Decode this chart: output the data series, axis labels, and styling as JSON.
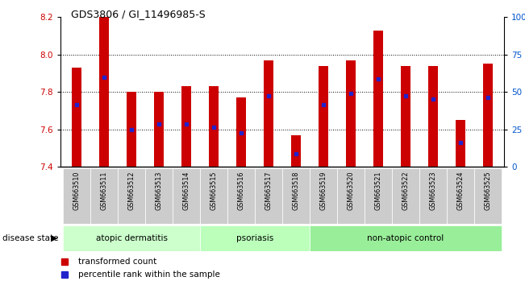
{
  "title": "GDS3806 / GI_11496985-S",
  "samples": [
    "GSM663510",
    "GSM663511",
    "GSM663512",
    "GSM663513",
    "GSM663514",
    "GSM663515",
    "GSM663516",
    "GSM663517",
    "GSM663518",
    "GSM663519",
    "GSM663520",
    "GSM663521",
    "GSM663522",
    "GSM663523",
    "GSM663524",
    "GSM663525"
  ],
  "bar_values": [
    7.93,
    8.2,
    7.8,
    7.8,
    7.83,
    7.83,
    7.77,
    7.97,
    7.57,
    7.94,
    7.97,
    8.13,
    7.94,
    7.94,
    7.65,
    7.95
  ],
  "percentile_values": [
    7.73,
    7.88,
    7.6,
    7.63,
    7.63,
    7.61,
    7.58,
    7.78,
    7.47,
    7.73,
    7.79,
    7.87,
    7.78,
    7.76,
    7.53,
    7.77
  ],
  "y_min": 7.4,
  "y_max": 8.2,
  "bar_color": "#cc0000",
  "dot_color": "#2222cc",
  "axis_label_color_left": "#cc0000",
  "axis_label_color_right": "#0055cc",
  "disease_groups": [
    {
      "label": "atopic dermatitis",
      "start": 0,
      "end": 4,
      "color": "#ccffcc"
    },
    {
      "label": "psoriasis",
      "start": 5,
      "end": 8,
      "color": "#bbffbb"
    },
    {
      "label": "non-atopic control",
      "start": 9,
      "end": 15,
      "color": "#aaeebb"
    }
  ],
  "y_ticks": [
    7.4,
    7.6,
    7.8,
    8.0,
    8.2
  ],
  "right_y_ticks": [
    0,
    25,
    50,
    75,
    100
  ],
  "right_y_labels": [
    "0",
    "25",
    "50",
    "75",
    "100%"
  ]
}
